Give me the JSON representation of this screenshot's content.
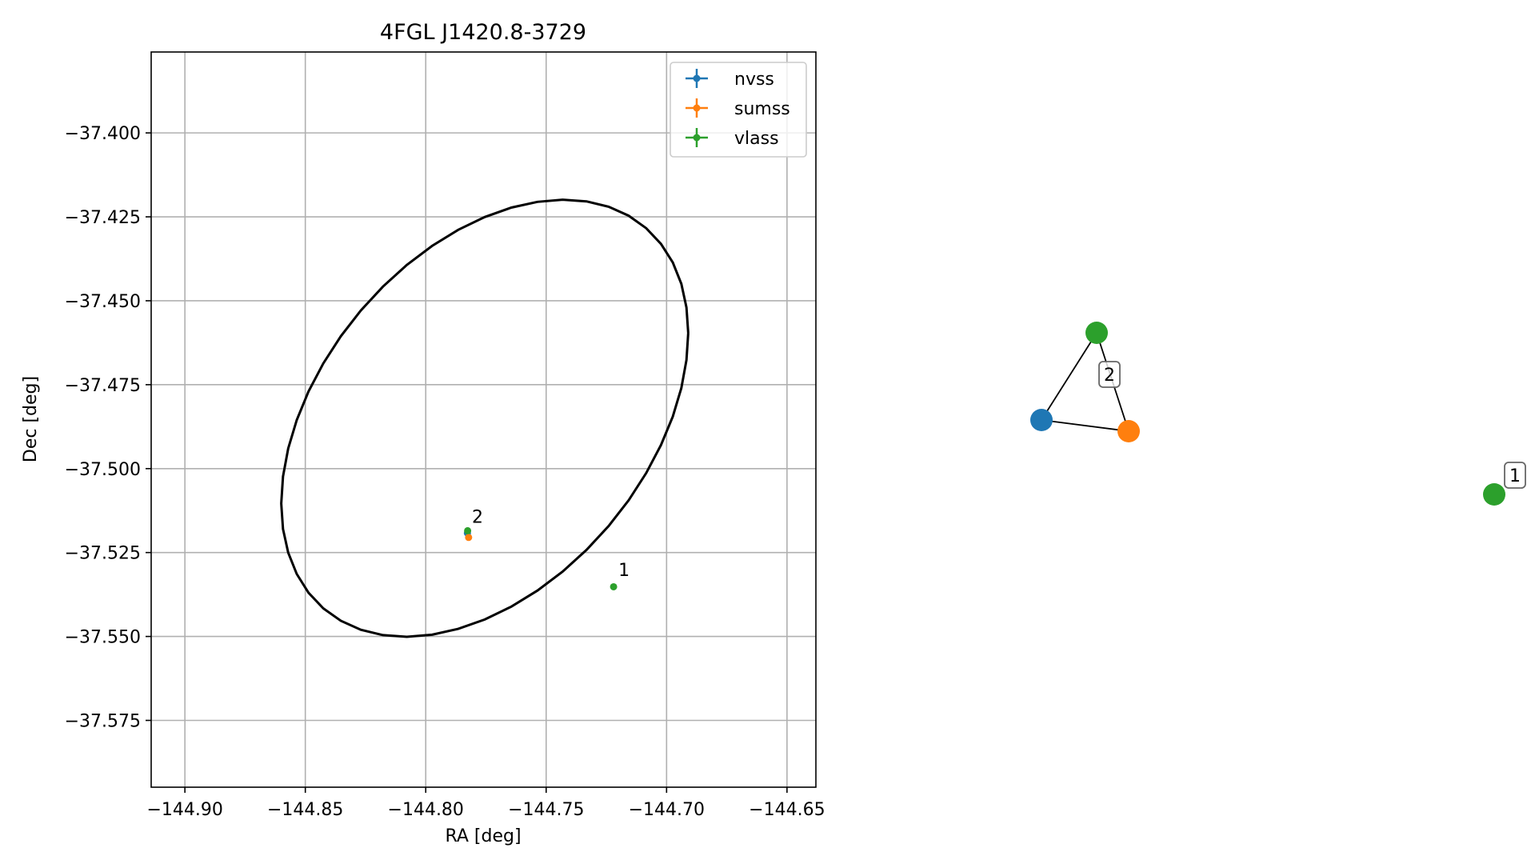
{
  "colors": {
    "nvss": "#1f77b4",
    "sumss": "#ff7f0e",
    "vlass": "#2ca02c",
    "ellipse": "#000000",
    "grid": "#b0b0b0"
  },
  "chart_data": [
    {
      "type": "scatter",
      "title": "4FGL J1420.8-3729",
      "xlabel": "RA [deg]",
      "ylabel": "Dec [deg]",
      "xlim": [
        -144.914,
        -144.638
      ],
      "ylim": [
        -37.5949,
        -37.3759
      ],
      "xticks": [
        -144.9,
        -144.85,
        -144.8,
        -144.75,
        -144.7,
        -144.65
      ],
      "xtick_labels": [
        "−144.90",
        "−144.85",
        "−144.80",
        "−144.75",
        "−144.70",
        "−144.65"
      ],
      "yticks": [
        -37.4,
        -37.425,
        -37.45,
        -37.475,
        -37.5,
        -37.525,
        -37.55,
        -37.575
      ],
      "ytick_labels": [
        "−37.400",
        "−37.425",
        "−37.450",
        "−37.475",
        "−37.500",
        "−37.525",
        "−37.550",
        "−37.575"
      ],
      "grid": true,
      "legend_position": "top-right",
      "series": [
        {
          "name": "nvss",
          "color": "#1f77b4",
          "points": [
            {
              "x": -144.7827,
              "y": -37.5192,
              "label": "2"
            }
          ]
        },
        {
          "name": "sumss",
          "color": "#ff7f0e",
          "points": [
            {
              "x": -144.7822,
              "y": -37.5205,
              "label": "2"
            }
          ]
        },
        {
          "name": "vlass",
          "color": "#2ca02c",
          "points": [
            {
              "x": -144.7826,
              "y": -37.5185,
              "label": "2"
            },
            {
              "x": -144.722,
              "y": -37.5352,
              "label": "1"
            }
          ]
        }
      ],
      "annotations": [
        {
          "text": "2",
          "x": -144.7808,
          "y": -37.5162
        },
        {
          "text": "1",
          "x": -144.72,
          "y": -37.532
        }
      ],
      "ellipse": {
        "center_ra": -144.7755,
        "center_dec": -37.485,
        "semi_ra": 0.0845,
        "semi_dec": 0.0651,
        "correlation": 0.39
      }
    },
    {
      "type": "network",
      "nodes": [
        {
          "id": "nvss-2",
          "series": "nvss",
          "color": "#1f77b4"
        },
        {
          "id": "sumss-2",
          "series": "sumss",
          "color": "#ff7f0e"
        },
        {
          "id": "vlass-2",
          "series": "vlass",
          "color": "#2ca02c"
        },
        {
          "id": "vlass-1",
          "series": "vlass",
          "color": "#2ca02c"
        }
      ],
      "edges": [
        [
          "nvss-2",
          "sumss-2"
        ],
        [
          "nvss-2",
          "vlass-2"
        ],
        [
          "sumss-2",
          "vlass-2"
        ]
      ],
      "group_labels": [
        {
          "text": "2",
          "group": [
            "nvss-2",
            "sumss-2",
            "vlass-2"
          ]
        },
        {
          "text": "1",
          "group": [
            "vlass-1"
          ]
        }
      ]
    }
  ]
}
